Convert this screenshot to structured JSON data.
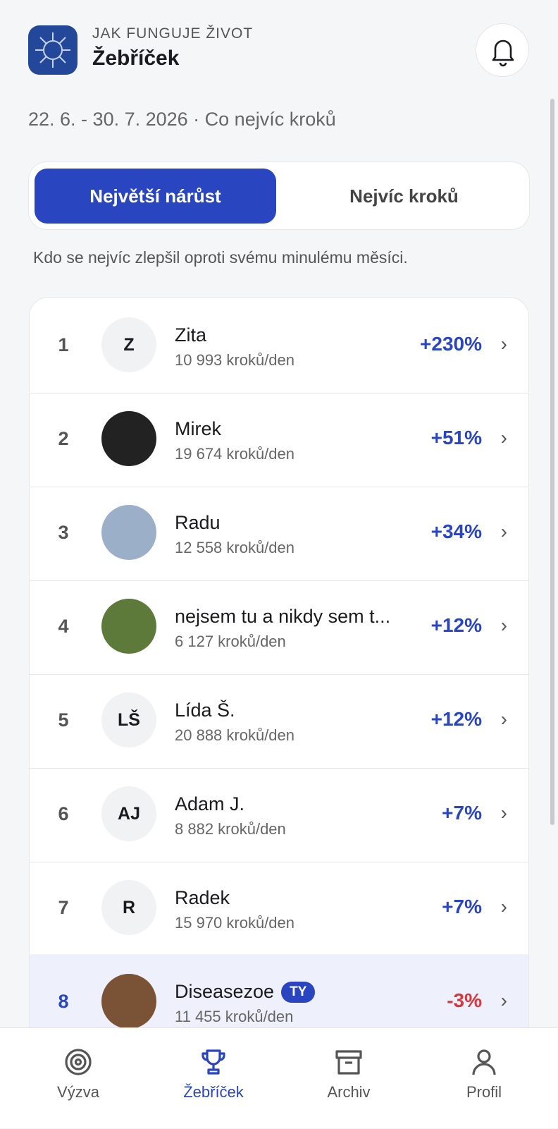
{
  "header": {
    "overline": "JAK FUNGUJE ŽIVOT",
    "title": "Žebříček"
  },
  "period": "22. 6. - 30. 7. 2026 · Co nejvíc kroků",
  "tabs": [
    "Největší nárůst",
    "Nejvíc kroků"
  ],
  "description": "Kdo se nejvíc zlepšil oproti svému minulému měsíci.",
  "rows": [
    {
      "rank": "1",
      "initials": "Z",
      "name": "Zita",
      "steps": "10 993 kroků/den",
      "change": "+230%"
    },
    {
      "rank": "2",
      "name": "Mirek",
      "steps": "19 674 kroků/den",
      "change": "+51%"
    },
    {
      "rank": "3",
      "name": "Radu",
      "steps": "12 558 kroků/den",
      "change": "+34%"
    },
    {
      "rank": "4",
      "name": "nejsem tu a nikdy sem t...",
      "steps": "6 127 kroků/den",
      "change": "+12%"
    },
    {
      "rank": "5",
      "initials": "LŠ",
      "name": "Lída Š.",
      "steps": "20 888 kroků/den",
      "change": "+12%"
    },
    {
      "rank": "6",
      "initials": "AJ",
      "name": "Adam J.",
      "steps": "8 882 kroků/den",
      "change": "+7%"
    },
    {
      "rank": "7",
      "initials": "R",
      "name": "Radek",
      "steps": "15 970 kroků/den",
      "change": "+7%"
    },
    {
      "rank": "8",
      "name": "Diseasezoe",
      "badge": "TY",
      "steps": "11 455 kroků/den",
      "change": "-3%"
    }
  ],
  "nav": [
    "Výzva",
    "Žebříček",
    "Archiv",
    "Profil"
  ]
}
